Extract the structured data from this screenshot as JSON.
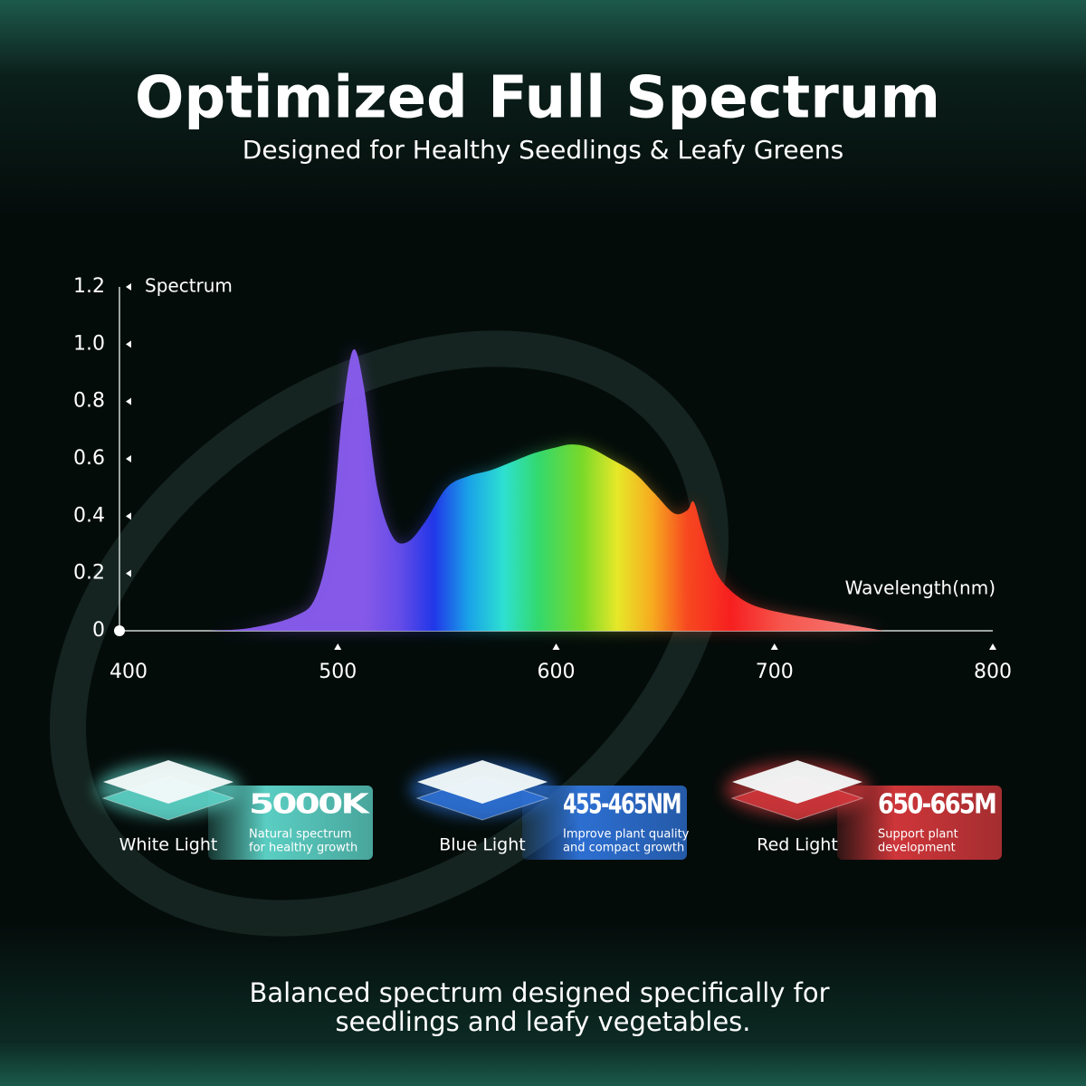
{
  "chart_data": {
    "type": "area",
    "title": "Optimized Full Spectrum",
    "subtitle": "Designed for Healthy Seedlings & Leafy Greens",
    "y_label": "Spectrum",
    "x_label": "Wavelength(nm)",
    "x": [
      440,
      460,
      480,
      490,
      497,
      502,
      507,
      512,
      518,
      525,
      532,
      540,
      550,
      560,
      570,
      580,
      590,
      600,
      607,
      615,
      625,
      636,
      645,
      654,
      660,
      663,
      667,
      673,
      680,
      690,
      705,
      720,
      735,
      750
    ],
    "values": [
      0,
      0.01,
      0.05,
      0.12,
      0.35,
      0.75,
      0.98,
      0.85,
      0.5,
      0.33,
      0.31,
      0.38,
      0.5,
      0.54,
      0.56,
      0.59,
      0.62,
      0.64,
      0.65,
      0.64,
      0.6,
      0.55,
      0.48,
      0.41,
      0.42,
      0.45,
      0.35,
      0.21,
      0.14,
      0.09,
      0.06,
      0.04,
      0.02,
      0
    ],
    "xlim": [
      400,
      800
    ],
    "xticks": [
      400,
      500,
      600,
      700,
      800
    ],
    "ylim": [
      0,
      1.2
    ],
    "yticks": [
      0,
      0.2,
      0.4,
      0.6,
      0.8,
      {
        "value": 1,
        "label": "1.0"
      },
      1.2
    ],
    "grid": false
  },
  "cards": [
    {
      "label": "White Light",
      "value": "5000K",
      "desc": [
        "Natural spectrum",
        "for healthy growth"
      ],
      "color": "#5fd8cc"
    },
    {
      "label": "Blue Light",
      "value": "455-465NM",
      "desc": [
        "Improve plant quality",
        "and compact growth"
      ],
      "color": "#2f74dc"
    },
    {
      "label": "Red Light",
      "value": "650-665M",
      "desc": [
        "Support plant",
        "development"
      ],
      "color": "#d9383c"
    }
  ],
  "footer": [
    "Balanced spectrum designed specifically for",
    "seedlings and leafy vegetables."
  ]
}
